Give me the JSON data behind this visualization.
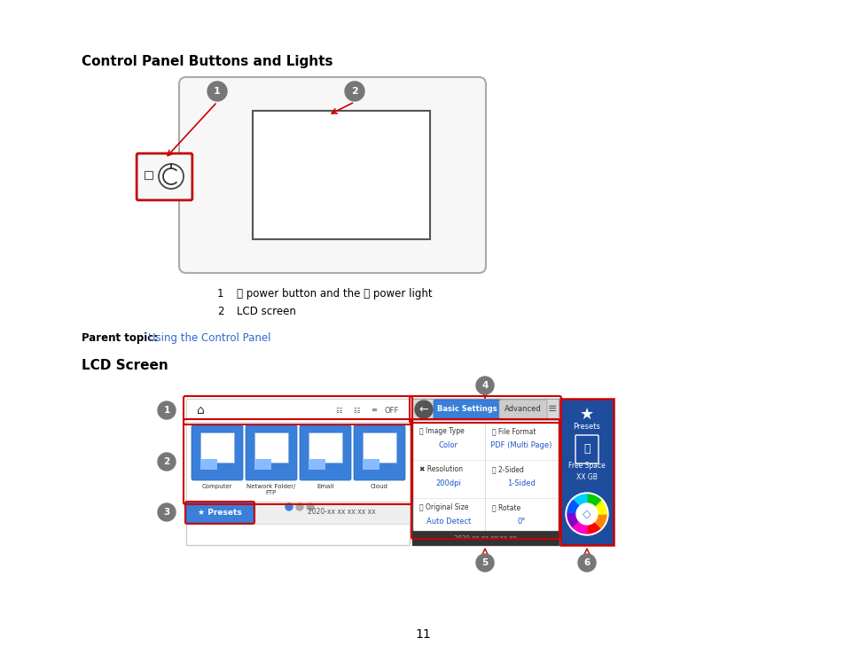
{
  "bg_color": "#ffffff",
  "page_title1": "Control Panel Buttons and Lights",
  "page_title2": "LCD Screen",
  "title1_fontsize": 11,
  "title2_fontsize": 11,
  "body_fontsize": 8.5,
  "page_number": "11",
  "callout_color": "#777777",
  "red_color": "#cc0000",
  "blue_color": "#2255cc",
  "link_color": "#3366cc",
  "desc1_num": "1",
  "desc1_text": " ⏻ power button and the ⏻ power light",
  "desc2_num": "2",
  "desc2_text": "   LCD screen",
  "parent_prefix": "Parent topic:",
  "parent_link": " Using the Control Panel"
}
